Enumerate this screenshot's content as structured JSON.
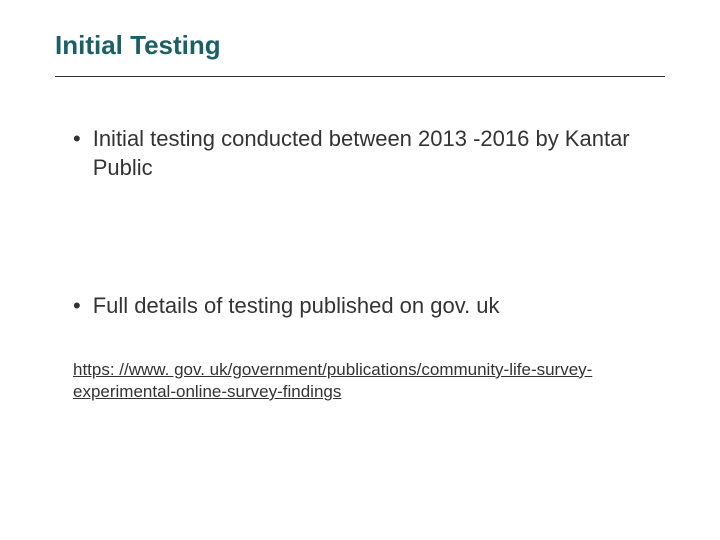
{
  "slide": {
    "title": "Initial Testing",
    "title_color": "#1a6066",
    "title_fontsize": 26,
    "divider_color": "#333333",
    "body_color": "#333333",
    "body_fontsize": 22,
    "bullets": [
      {
        "text": "Initial testing conducted between 2013 -2016 by Kantar Public"
      },
      {
        "text": "Full details of testing published on gov. uk"
      }
    ],
    "link": {
      "text": "https: //www. gov. uk/government/publications/community-life-survey-experimental-online-survey-findings",
      "fontsize": 17,
      "color": "#333333"
    },
    "background_color": "#ffffff"
  }
}
